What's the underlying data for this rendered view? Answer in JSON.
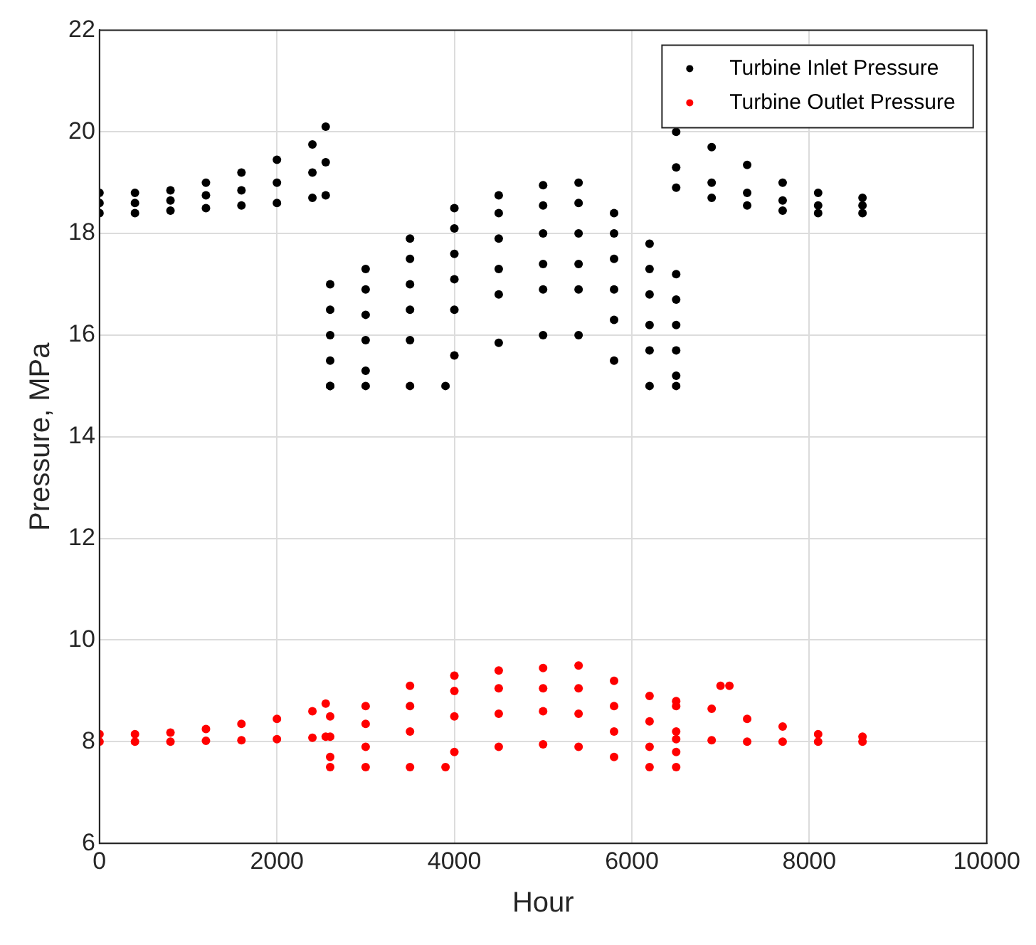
{
  "chart_data": {
    "type": "scatter",
    "xlabel": "Hour",
    "ylabel": "Pressure, MPa",
    "xlim": [
      0,
      10000
    ],
    "xticks": [
      0,
      2000,
      4000,
      6000,
      8000,
      10000
    ],
    "ylim": [
      6,
      22
    ],
    "yticks": [
      6,
      8,
      10,
      12,
      14,
      16,
      18,
      20,
      22
    ],
    "grid": true,
    "legend": "top right",
    "marker": "circle",
    "series": [
      {
        "name": "Turbine Inlet Pressure",
        "color": "#000000",
        "x": [
          0,
          400,
          800,
          1200,
          1600,
          2000,
          2400,
          2550,
          0,
          400,
          800,
          1200,
          1600,
          2000,
          2400,
          2550,
          0,
          400,
          800,
          1200,
          1600,
          2000,
          2400,
          2550,
          2600,
          3000,
          3500,
          4000,
          4500,
          5000,
          5400,
          5800,
          6200,
          6500,
          2600,
          3000,
          3500,
          4000,
          4500,
          5000,
          5400,
          5800,
          6200,
          6500,
          2600,
          3000,
          3500,
          4000,
          4500,
          5000,
          5400,
          5800,
          6200,
          6500,
          2600,
          3000,
          3500,
          4000,
          4500,
          5000,
          5400,
          5800,
          6200,
          6500,
          2600,
          3000,
          3500,
          4000,
          4500,
          5000,
          5400,
          5800,
          6200,
          6500,
          2600,
          3000,
          3500,
          4000,
          4500,
          5000,
          5400,
          5800,
          6200,
          6500,
          3900,
          6500,
          6900,
          7300,
          7700,
          8100,
          8600,
          6500,
          6900,
          7300,
          7700,
          8100,
          8600,
          6500,
          6900,
          7300,
          7700,
          8100,
          8600
        ],
        "values": [
          18.4,
          18.4,
          18.45,
          18.5,
          18.55,
          18.6,
          18.7,
          18.75,
          18.6,
          18.6,
          18.65,
          18.75,
          18.85,
          19.0,
          19.2,
          19.4,
          18.8,
          18.8,
          18.85,
          19.0,
          19.2,
          19.45,
          19.75,
          20.1,
          17.0,
          17.3,
          17.9,
          18.5,
          18.75,
          18.95,
          19.0,
          18.4,
          17.8,
          17.2,
          16.5,
          16.9,
          17.5,
          18.1,
          18.4,
          18.55,
          18.6,
          18.0,
          17.3,
          16.7,
          16.0,
          16.4,
          17.0,
          17.6,
          17.9,
          18.0,
          18.0,
          17.5,
          16.8,
          16.2,
          15.5,
          15.9,
          16.5,
          17.1,
          17.3,
          17.4,
          17.4,
          16.9,
          16.2,
          15.7,
          15.0,
          15.3,
          15.9,
          16.5,
          16.8,
          16.9,
          16.9,
          16.3,
          15.7,
          15.2,
          15.0,
          15.0,
          15.0,
          15.6,
          15.85,
          16.0,
          16.0,
          15.5,
          15.0,
          15.0,
          15.0,
          20.0,
          19.7,
          19.35,
          19.0,
          18.8,
          18.7,
          19.3,
          19.0,
          18.8,
          18.65,
          18.55,
          18.55,
          18.9,
          18.7,
          18.55,
          18.45,
          18.4,
          18.4
        ]
      },
      {
        "name": "Turbine Outlet Pressure",
        "color": "#ff0000",
        "x": [
          0,
          400,
          800,
          1200,
          1600,
          2000,
          2400,
          2550,
          0,
          400,
          800,
          1200,
          1600,
          2000,
          2400,
          2550,
          2600,
          3000,
          3500,
          4000,
          4500,
          5000,
          5400,
          5800,
          6200,
          6500,
          2600,
          3000,
          3500,
          4000,
          4500,
          5000,
          5400,
          5800,
          6200,
          6500,
          2600,
          3000,
          3500,
          4000,
          4500,
          5000,
          5400,
          5800,
          6200,
          6500,
          2600,
          3000,
          3500,
          4000,
          4500,
          5000,
          5400,
          5800,
          6200,
          6500,
          3900,
          6500,
          6900,
          7300,
          7700,
          8100,
          8600,
          6500,
          6900,
          7300,
          7700,
          8100,
          8600,
          7000,
          7100
        ],
        "values": [
          8.0,
          8.0,
          8.0,
          8.02,
          8.03,
          8.05,
          8.08,
          8.1,
          8.15,
          8.15,
          8.18,
          8.25,
          8.35,
          8.45,
          8.6,
          8.75,
          8.5,
          8.7,
          9.1,
          9.3,
          9.4,
          9.45,
          9.5,
          9.2,
          8.9,
          8.7,
          8.1,
          8.35,
          8.7,
          9.0,
          9.05,
          9.05,
          9.05,
          8.7,
          8.4,
          8.2,
          7.7,
          7.9,
          8.2,
          8.5,
          8.55,
          8.6,
          8.55,
          8.2,
          7.9,
          7.8,
          7.5,
          7.5,
          7.5,
          7.8,
          7.9,
          7.95,
          7.9,
          7.7,
          7.5,
          7.5,
          7.5,
          8.8,
          8.65,
          8.45,
          8.3,
          8.15,
          8.1,
          8.05,
          8.03,
          8.0,
          8.0,
          8.0,
          8.0,
          9.1,
          9.1
        ]
      }
    ]
  }
}
